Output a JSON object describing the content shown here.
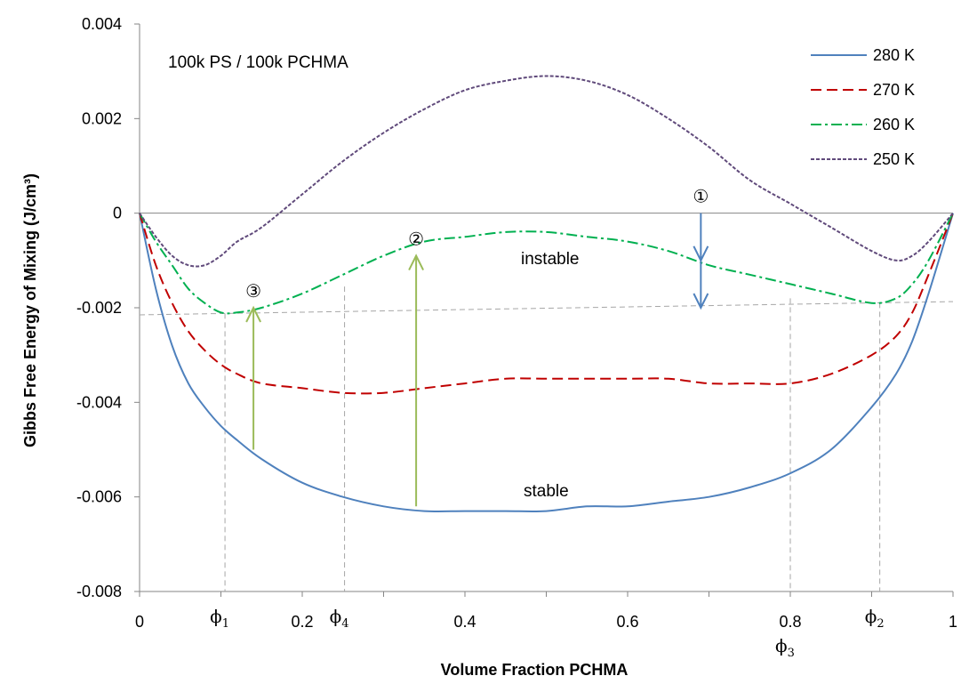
{
  "chart_data": {
    "type": "line",
    "title": "100k PS / 100k PCHMA",
    "xlabel": "Volume Fraction PCHMA",
    "ylabel": "Gibbs Free Energy of Mixing (J/cm³)",
    "xlim": [
      0,
      1
    ],
    "ylim": [
      -0.008,
      0.004
    ],
    "x_ticks": [
      "0",
      "0.2",
      "0.4",
      "0.6",
      "0.8",
      "1"
    ],
    "y_ticks": [
      "0.004",
      "0.002",
      "0",
      "-0.002",
      "-0.004",
      "-0.006",
      "-0.008"
    ],
    "grid": false,
    "legend_position": "top-right",
    "series": [
      {
        "name": "280 K",
        "color": "#4f81bd",
        "dash": "solid",
        "x": [
          0,
          0.02,
          0.04,
          0.06,
          0.08,
          0.1,
          0.12,
          0.15,
          0.2,
          0.25,
          0.3,
          0.35,
          0.4,
          0.45,
          0.5,
          0.55,
          0.6,
          0.65,
          0.7,
          0.75,
          0.8,
          0.85,
          0.9,
          0.93,
          0.95,
          0.97,
          1
        ],
        "y": [
          0,
          -0.0016,
          -0.0028,
          -0.0036,
          -0.0041,
          -0.0045,
          -0.0048,
          -0.0052,
          -0.0057,
          -0.006,
          -0.0062,
          -0.0063,
          -0.0063,
          -0.0063,
          -0.0063,
          -0.0062,
          -0.0062,
          -0.0061,
          -0.006,
          -0.0058,
          -0.0055,
          -0.005,
          -0.0041,
          -0.0034,
          -0.0027,
          -0.0017,
          0
        ]
      },
      {
        "name": "270 K",
        "color": "#c00000",
        "dash": "dashed",
        "x": [
          0,
          0.02,
          0.04,
          0.06,
          0.08,
          0.1,
          0.12,
          0.15,
          0.2,
          0.25,
          0.3,
          0.35,
          0.4,
          0.45,
          0.5,
          0.55,
          0.6,
          0.65,
          0.7,
          0.75,
          0.8,
          0.85,
          0.9,
          0.93,
          0.95,
          0.97,
          1
        ],
        "y": [
          0,
          -0.0011,
          -0.0019,
          -0.0025,
          -0.0029,
          -0.0032,
          -0.0034,
          -0.0036,
          -0.0037,
          -0.0038,
          -0.0038,
          -0.0037,
          -0.0036,
          -0.0035,
          -0.0035,
          -0.0035,
          -0.0035,
          -0.0035,
          -0.0036,
          -0.0036,
          -0.0036,
          -0.0034,
          -0.003,
          -0.0026,
          -0.0021,
          -0.0013,
          0
        ]
      },
      {
        "name": "260 K",
        "color": "#00b050",
        "dash": "dashdot",
        "x": [
          0,
          0.02,
          0.04,
          0.06,
          0.08,
          0.1,
          0.12,
          0.15,
          0.2,
          0.25,
          0.3,
          0.35,
          0.4,
          0.45,
          0.5,
          0.55,
          0.6,
          0.65,
          0.7,
          0.75,
          0.8,
          0.85,
          0.9,
          0.93,
          0.95,
          0.97,
          1
        ],
        "y": [
          0,
          -0.0006,
          -0.0011,
          -0.0016,
          -0.0019,
          -0.0021,
          -0.0021,
          -0.002,
          -0.0017,
          -0.0013,
          -0.0009,
          -0.0006,
          -0.0005,
          -0.0004,
          -0.0004,
          -0.0005,
          -0.0006,
          -0.0008,
          -0.0011,
          -0.0013,
          -0.0015,
          -0.0017,
          -0.0019,
          -0.0018,
          -0.0015,
          -0.001,
          0
        ]
      },
      {
        "name": "250 K",
        "color": "#604a7b",
        "dash": "dotted",
        "x": [
          0,
          0.02,
          0.04,
          0.06,
          0.08,
          0.1,
          0.12,
          0.15,
          0.2,
          0.25,
          0.3,
          0.35,
          0.4,
          0.45,
          0.5,
          0.55,
          0.6,
          0.65,
          0.7,
          0.75,
          0.8,
          0.85,
          0.9,
          0.93,
          0.95,
          0.97,
          1
        ],
        "y": [
          0,
          -0.0005,
          -0.0009,
          -0.0011,
          -0.0011,
          -0.0009,
          -0.0006,
          -0.0003,
          0.0004,
          0.0011,
          0.0017,
          0.0022,
          0.0026,
          0.0028,
          0.0029,
          0.0028,
          0.0025,
          0.002,
          0.0014,
          0.0007,
          0.0002,
          -0.0003,
          -0.0008,
          -0.001,
          -0.0009,
          -0.0006,
          0
        ]
      }
    ],
    "annotations": {
      "stable_label": "stable",
      "instable_label": "instable",
      "markers": [
        {
          "label": "①",
          "x": 0.69,
          "y_from": 0,
          "y_to": -0.002,
          "color": "#4f81bd"
        },
        {
          "label": "②",
          "x": 0.34,
          "y_from": -0.0062,
          "y_to": -0.0009,
          "color": "#9bbb59"
        },
        {
          "label": "③",
          "x": 0.14,
          "y_from": -0.005,
          "y_to": -0.002,
          "color": "#9bbb59"
        }
      ],
      "tangent_line": {
        "x": [
          0,
          1
        ],
        "y": [
          -0.00215,
          -0.00187
        ]
      },
      "phi_markers": [
        {
          "symbol": "ϕ",
          "sub": "1",
          "x": 0.105,
          "row": 1
        },
        {
          "symbol": "ϕ",
          "sub": "4",
          "x": 0.252,
          "row": 1
        },
        {
          "symbol": "ϕ",
          "sub": "3",
          "x": 0.8,
          "row": 2
        },
        {
          "symbol": "ϕ",
          "sub": "2",
          "x": 0.91,
          "row": 1
        }
      ]
    }
  }
}
